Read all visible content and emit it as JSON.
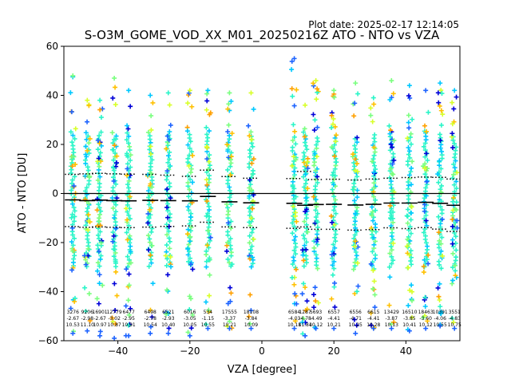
{
  "chart_data": {
    "type": "scatter",
    "title": "S-O3M_GOME_VOD_XX_M01_20250216Z ATO - NTO vs VZA",
    "plot_date": "Plot date: 2025-02-17 12:14:05",
    "xlabel": "VZA [degree]",
    "ylabel": "ATO - NTO [DU]",
    "xlim": [
      -55,
      55
    ],
    "ylim": [
      -60,
      60
    ],
    "xticks": [
      -40,
      -20,
      0,
      20,
      40
    ],
    "yticks": [
      -60,
      -40,
      -20,
      0,
      20,
      40,
      60
    ],
    "zero_line": 0,
    "marker": "+",
    "colors": [
      "#1e64ff",
      "#00c8ff",
      "#2af5c8",
      "#7aff7f",
      "#d8ff2a",
      "#ffc000",
      "#ffa000",
      "#0000d8"
    ],
    "bins": [
      {
        "x": -52.5,
        "min": -57,
        "max": 48,
        "mean": -2.6,
        "sd_lo": -13.5,
        "sd_hi": 7.8,
        "count": "3276",
        "mean_txt": "-2.67",
        "sd_txt": "10.53"
      },
      {
        "x": -48.5,
        "min": -56,
        "max": 38,
        "mean": -2.9,
        "sd_lo": -13.8,
        "sd_hi": 8.0,
        "count": "9206",
        "mean_txt": "-2.98",
        "sd_txt": "11.10"
      },
      {
        "x": -45.0,
        "min": -58,
        "max": 38,
        "mean": -2.7,
        "sd_lo": -13.6,
        "sd_hi": 8.2,
        "count": "16901",
        "mean_txt": "-2.67",
        "sd_txt": "10.97"
      },
      {
        "x": -41.0,
        "min": -59,
        "max": 47,
        "mean": -2.9,
        "sd_lo": -13.8,
        "sd_hi": 8.0,
        "count": "12779",
        "mean_txt": "-3.02",
        "sd_txt": "10.87"
      },
      {
        "x": -37.0,
        "min": -58,
        "max": 42,
        "mean": -3.0,
        "sd_lo": -13.9,
        "sd_hi": 7.9,
        "count": "6477",
        "mean_txt": "-2.95",
        "sd_txt": "10.91"
      },
      {
        "x": -31.0,
        "min": -57,
        "max": 40,
        "mean": -2.8,
        "sd_lo": -13.7,
        "sd_hi": 7.8,
        "count": "6498",
        "mean_txt": "-2.78",
        "sd_txt": "10.54"
      },
      {
        "x": -26.0,
        "min": -57,
        "max": 41,
        "mean": -2.9,
        "sd_lo": -13.4,
        "sd_hi": 7.5,
        "count": "6521",
        "mean_txt": "-2.93",
        "sd_txt": "10.40"
      },
      {
        "x": -20.0,
        "min": -58,
        "max": 42,
        "mean": -3.0,
        "sd_lo": -13.2,
        "sd_hi": 7.0,
        "count": "6016",
        "mean_txt": "-3.05",
        "sd_txt": "10.05"
      },
      {
        "x": -15.0,
        "min": -55,
        "max": 42,
        "mean": -1.2,
        "sd_lo": -11.7,
        "sd_hi": 9.5,
        "count": "534",
        "mean_txt": "-1.15",
        "sd_txt": "10.55"
      },
      {
        "x": -9.0,
        "min": -55,
        "max": 41,
        "mean": -3.4,
        "sd_lo": -13.6,
        "sd_hi": 6.9,
        "count": "17555",
        "mean_txt": "-3.37",
        "sd_txt": "10.21"
      },
      {
        "x": -3.0,
        "min": -55,
        "max": 41,
        "mean": -3.8,
        "sd_lo": -13.9,
        "sd_hi": 6.2,
        "count": "18108",
        "mean_txt": "-3.84",
        "sd_txt": "10.09"
      },
      {
        "x": 9.0,
        "min": -55,
        "max": 55,
        "mean": -4.0,
        "sd_lo": -14.2,
        "sd_hi": 6.1,
        "count": "6584",
        "mean_txt": "-4.03",
        "sd_txt": "10.18"
      },
      {
        "x": 12.0,
        "min": -58,
        "max": 36,
        "mean": -4.8,
        "sd_lo": -13.6,
        "sd_hi": 9.0,
        "count": "1287",
        "mean_txt": "-4.78",
        "sd_txt": "11.84"
      },
      {
        "x": 15.0,
        "min": -55,
        "max": 46,
        "mean": -4.5,
        "sd_lo": -14.6,
        "sd_hi": 5.7,
        "count": "5693",
        "mean_txt": "-4.49",
        "sd_txt": "10.12"
      },
      {
        "x": 20.0,
        "min": -55,
        "max": 42,
        "mean": -4.4,
        "sd_lo": -14.6,
        "sd_hi": 5.8,
        "count": "6557",
        "mean_txt": "-4.41",
        "sd_txt": "10.21"
      },
      {
        "x": 26.0,
        "min": -57,
        "max": 45,
        "mean": -4.7,
        "sd_lo": -14.9,
        "sd_hi": 5.5,
        "count": "6556",
        "mean_txt": "-4.71",
        "sd_txt": "10.25"
      },
      {
        "x": 31.0,
        "min": -55,
        "max": 39,
        "mean": -4.4,
        "sd_lo": -14.7,
        "sd_hi": 5.9,
        "count": "6615",
        "mean_txt": "-4.41",
        "sd_txt": "10.28"
      },
      {
        "x": 36.0,
        "min": -55,
        "max": 46,
        "mean": -3.9,
        "sd_lo": -14.0,
        "sd_hi": 6.2,
        "count": "13429",
        "mean_txt": "-3.87",
        "sd_txt": "10.13"
      },
      {
        "x": 41.0,
        "min": -56,
        "max": 44,
        "mean": -3.9,
        "sd_lo": -14.3,
        "sd_hi": 6.5,
        "count": "16510",
        "mean_txt": "-3.85",
        "sd_txt": "10.41"
      },
      {
        "x": 45.5,
        "min": -55,
        "max": 42,
        "mean": -3.6,
        "sd_lo": -13.9,
        "sd_hi": 6.7,
        "count": "18463",
        "mean_txt": "-3.60",
        "sd_txt": "10.12"
      },
      {
        "x": 49.5,
        "min": -54,
        "max": 45,
        "mean": -4.0,
        "sd_lo": -14.5,
        "sd_hi": 6.6,
        "count": "10391",
        "mean_txt": "-4.06",
        "sd_txt": "10.55"
      },
      {
        "x": 53.5,
        "min": -55,
        "max": 42,
        "mean": -4.8,
        "sd_lo": -15.5,
        "sd_hi": 5.9,
        "count": "3551",
        "mean_txt": "-4.83",
        "sd_txt": "10.75"
      }
    ]
  }
}
